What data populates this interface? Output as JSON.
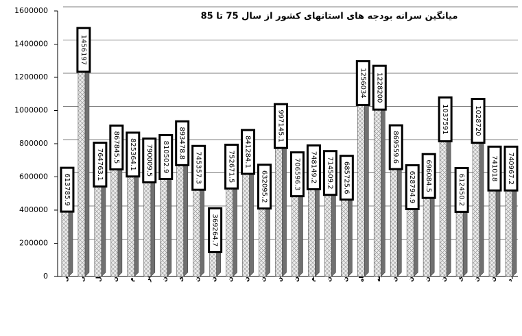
{
  "chart_data": {
    "type": "bar3d",
    "title": "میانگین سرانه بودجه های استانهای کشور از سال 75 تا 85",
    "categories": [
      "آذربایجان شرقی",
      "آذربایجان غربی",
      "اردبیل",
      "اصفهان",
      "ایلام",
      "بوشهر",
      "تهران",
      "چهارمحال و بختیاری",
      "خراسان",
      "خوزستان",
      "زنجان",
      "سمنان",
      "سیستان",
      "فارس",
      "قزوین",
      "قم",
      "کردستان",
      "کرمان",
      "کرمانشاه",
      "کهگیلویه",
      "گلستان",
      "گیلان",
      "لرستان",
      "مازندران",
      "مرکزی",
      "هرمزگان",
      "همدان",
      "یزد"
    ],
    "values": [
      613785.9,
      1456197,
      764763.1,
      867845.5,
      825364.1,
      790009.5,
      810502.9,
      893478.8,
      745357.3,
      369264.7,
      752671.5,
      841284.1,
      632095.2,
      997145.1,
      706596.3,
      748149.2,
      714509.2,
      685725.6,
      1256034,
      1228200,
      869559.6,
      628794.9,
      696084.5,
      1037591,
      612450.2,
      1028720,
      741018,
      740967.2
    ],
    "ylim": [
      0,
      1600000
    ],
    "yticks": [
      0,
      200000,
      400000,
      600000,
      800000,
      1000000,
      1200000,
      1400000,
      1600000
    ],
    "grid": true,
    "color": "#d9d9d9",
    "side_color": "#707070"
  }
}
